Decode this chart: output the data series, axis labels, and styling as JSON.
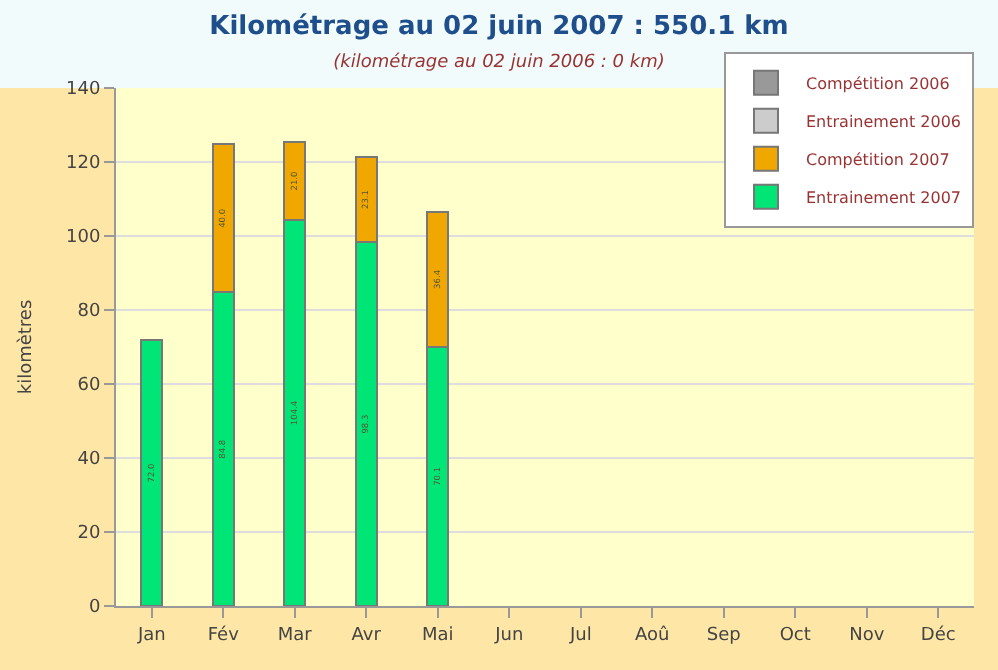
{
  "chart_data": {
    "type": "bar",
    "title": "Kilométrage au 02 juin 2007 : 550.1 km",
    "subtitle": "(kilométrage au 02 juin 2006 : 0 km)",
    "ylabel": "kilomètres",
    "categories": [
      "Jan",
      "Fév",
      "Mar",
      "Avr",
      "Mai",
      "Jun",
      "Jul",
      "Aoû",
      "Sep",
      "Oct",
      "Nov",
      "Déc"
    ],
    "stacked": true,
    "series": [
      {
        "name": "Entrainement 2007",
        "color": "#00e676",
        "values": [
          72.0,
          84.8,
          104.4,
          98.3,
          70.1,
          null,
          null,
          null,
          null,
          null,
          null,
          null
        ],
        "value_labels": [
          "72.0",
          "84.8",
          "104.4",
          "98.3",
          "70.1",
          null,
          null,
          null,
          null,
          null,
          null,
          null
        ]
      },
      {
        "name": "Compétition 2007",
        "color": "#f0a800",
        "values": [
          null,
          40.0,
          21.0,
          23.1,
          36.4,
          null,
          null,
          null,
          null,
          null,
          null,
          null
        ],
        "value_labels": [
          null,
          "40.0",
          "21.0",
          "23.1",
          "36.4",
          null,
          null,
          null,
          null,
          null,
          null,
          null
        ]
      },
      {
        "name": "Entrainement 2006",
        "color": "#cccccc",
        "values": [
          null,
          null,
          null,
          null,
          null,
          null,
          null,
          null,
          null,
          null,
          null,
          null
        ]
      },
      {
        "name": "Compétition 2006",
        "color": "#999999",
        "values": [
          null,
          null,
          null,
          null,
          null,
          null,
          null,
          null,
          null,
          null,
          null,
          null
        ]
      }
    ],
    "ylim": [
      0,
      140
    ],
    "yticks": [
      0,
      20,
      40,
      60,
      80,
      100,
      120,
      140
    ],
    "grid": "y",
    "legend": "top right"
  }
}
